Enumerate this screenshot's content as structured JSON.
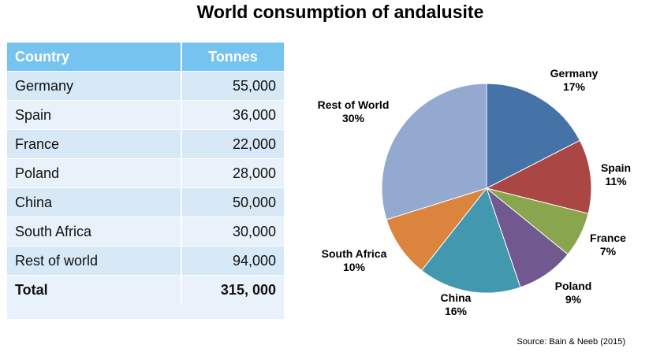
{
  "title": "World consumption of andalusite",
  "table": {
    "headers": [
      "Country",
      "Tonnes"
    ],
    "rows": [
      [
        "Germany",
        "55,000"
      ],
      [
        "Spain",
        "36,000"
      ],
      [
        "France",
        "22,000"
      ],
      [
        "Poland",
        "28,000"
      ],
      [
        "China",
        "50,000"
      ],
      [
        "South Africa",
        "30,000"
      ],
      [
        "Rest of world",
        "94,000"
      ]
    ],
    "total": [
      "Total",
      "315, 000"
    ]
  },
  "chart_data": {
    "type": "pie",
    "title": "World consumption of andalusite",
    "slices": [
      {
        "label": "Germany",
        "percent_label": "17%",
        "value": 55000,
        "color": "#4572a7"
      },
      {
        "label": "Spain",
        "percent_label": "11%",
        "value": 36000,
        "color": "#aa4643"
      },
      {
        "label": "France",
        "percent_label": "7%",
        "value": 22000,
        "color": "#89a54e"
      },
      {
        "label": "Poland",
        "percent_label": "9%",
        "value": 28000,
        "color": "#71588f"
      },
      {
        "label": "China",
        "percent_label": "16%",
        "value": 50000,
        "color": "#4198af"
      },
      {
        "label": "South Africa",
        "percent_label": "10%",
        "value": 30000,
        "color": "#db843d"
      },
      {
        "label": "Rest of World",
        "percent_label": "30%",
        "value": 94000,
        "color": "#93a9cf"
      }
    ],
    "start_angle": "12 o'clock",
    "direction": "clockwise"
  },
  "source": "Source: Bain & Neeb (2015)"
}
